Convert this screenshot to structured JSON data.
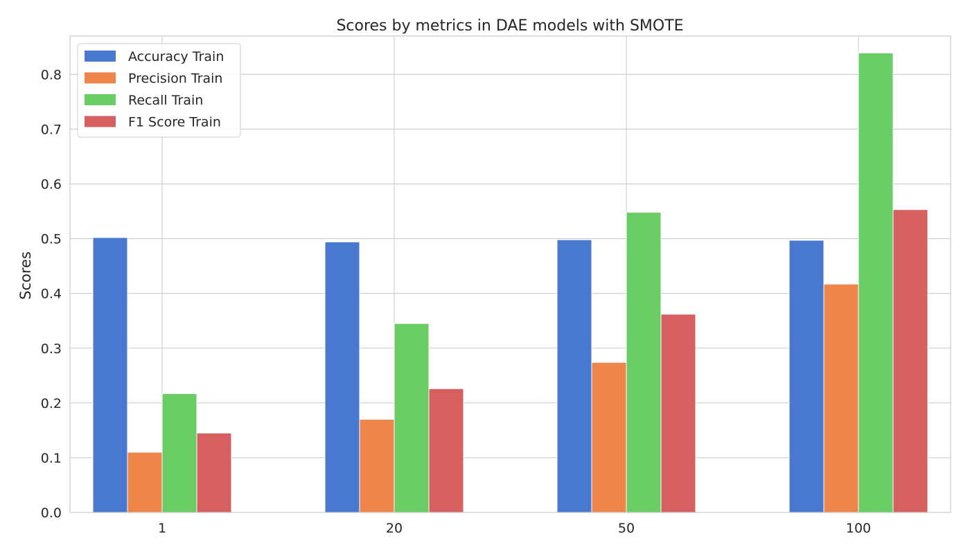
{
  "chart_data": {
    "type": "bar",
    "title": "Scores by metrics in DAE models with SMOTE",
    "xlabel": "",
    "ylabel": "Scores",
    "categories": [
      "1",
      "20",
      "50",
      "100"
    ],
    "series": [
      {
        "name": "Accuracy Train",
        "color": "#4878d0",
        "values": [
          0.502,
          0.494,
          0.498,
          0.497
        ]
      },
      {
        "name": "Precision Train",
        "color": "#ee854a",
        "values": [
          0.11,
          0.17,
          0.274,
          0.417
        ]
      },
      {
        "name": "Recall Train",
        "color": "#6acc64",
        "values": [
          0.217,
          0.345,
          0.548,
          0.839
        ]
      },
      {
        "name": "F1 Score Train",
        "color": "#d65f5f",
        "values": [
          0.145,
          0.226,
          0.362,
          0.553
        ]
      }
    ],
    "ylim": [
      0,
      0.87
    ],
    "yticks": [
      "0.0",
      "0.1",
      "0.2",
      "0.3",
      "0.4",
      "0.5",
      "0.6",
      "0.7",
      "0.8"
    ],
    "grid": true,
    "legend_position": "top-left"
  }
}
